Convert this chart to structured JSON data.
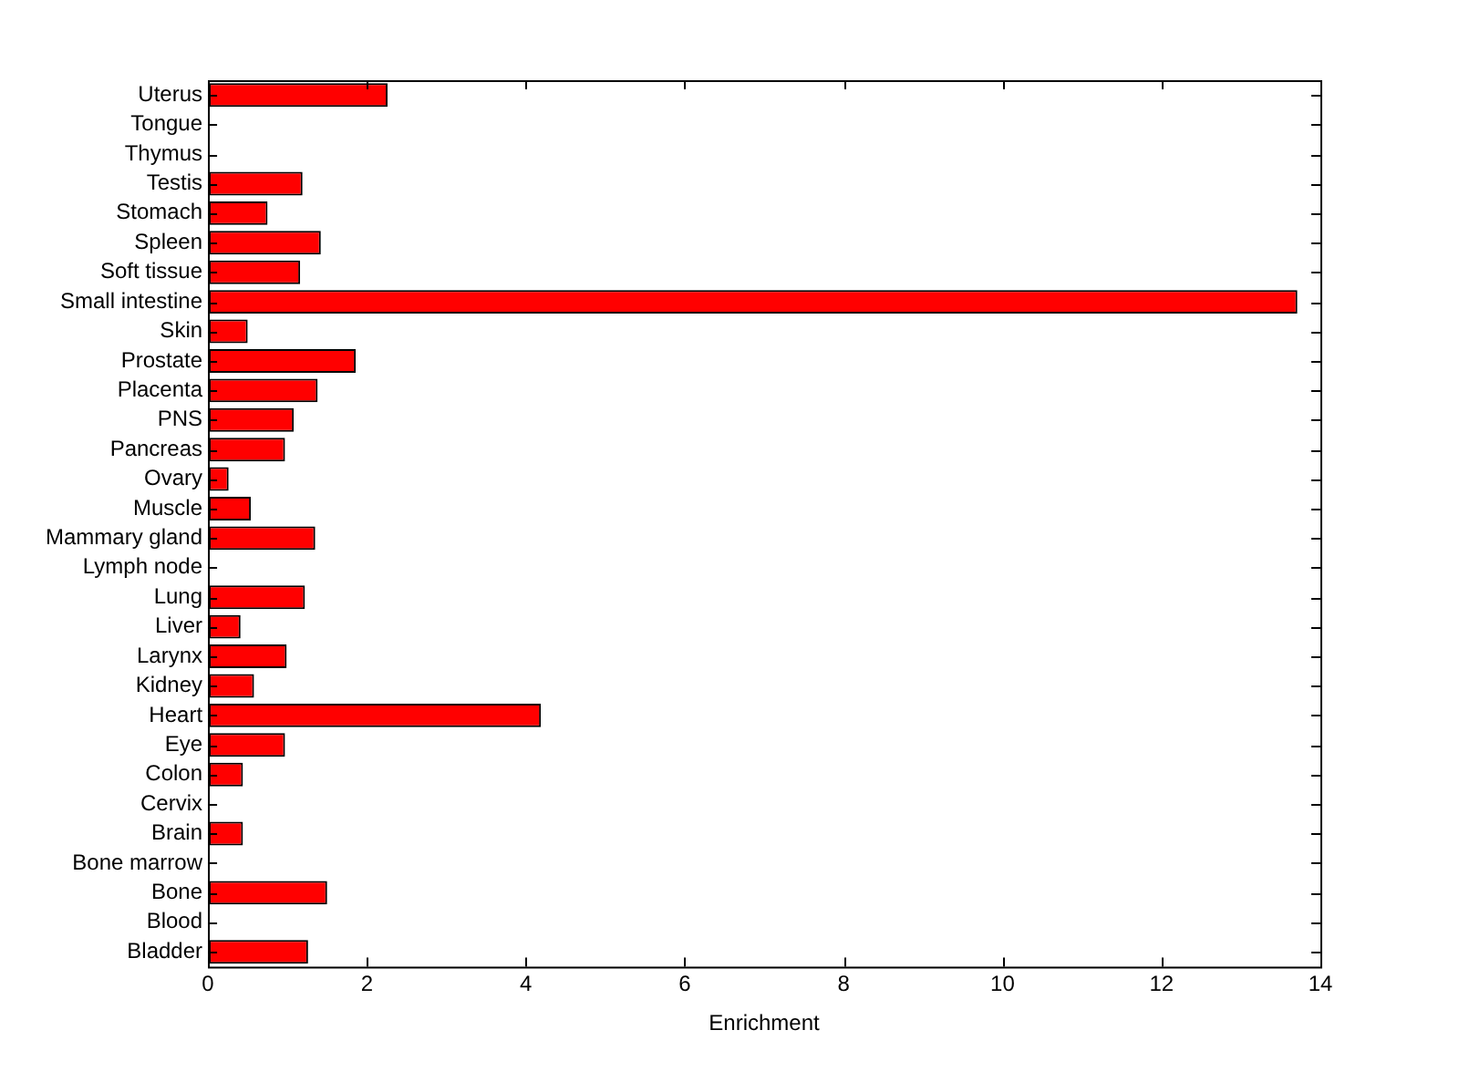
{
  "chart_data": {
    "type": "bar",
    "orientation": "horizontal",
    "xlabel": "Enrichment",
    "categories": [
      "Uterus",
      "Tongue",
      "Thymus",
      "Testis",
      "Stomach",
      "Spleen",
      "Soft tissue",
      "Small intestine",
      "Skin",
      "Prostate",
      "Placenta",
      "PNS",
      "Pancreas",
      "Ovary",
      "Muscle",
      "Mammary gland",
      "Lymph node",
      "Lung",
      "Liver",
      "Larynx",
      "Kidney",
      "Heart",
      "Eye",
      "Colon",
      "Cervix",
      "Brain",
      "Bone marrow",
      "Bone",
      "Blood",
      "Bladder"
    ],
    "values": [
      2.26,
      0,
      0,
      1.19,
      0.75,
      1.42,
      1.16,
      13.71,
      0.5,
      1.86,
      1.38,
      1.08,
      0.97,
      0.26,
      0.54,
      1.35,
      0,
      1.22,
      0.41,
      0.99,
      0.58,
      4.19,
      0.97,
      0.44,
      0,
      0.44,
      0,
      1.5,
      0,
      1.26
    ],
    "color": "#ff0000",
    "xlim": [
      0,
      14
    ],
    "xticks": [
      0,
      2,
      4,
      6,
      8,
      10,
      12,
      14
    ],
    "grid": false,
    "legend": false
  }
}
